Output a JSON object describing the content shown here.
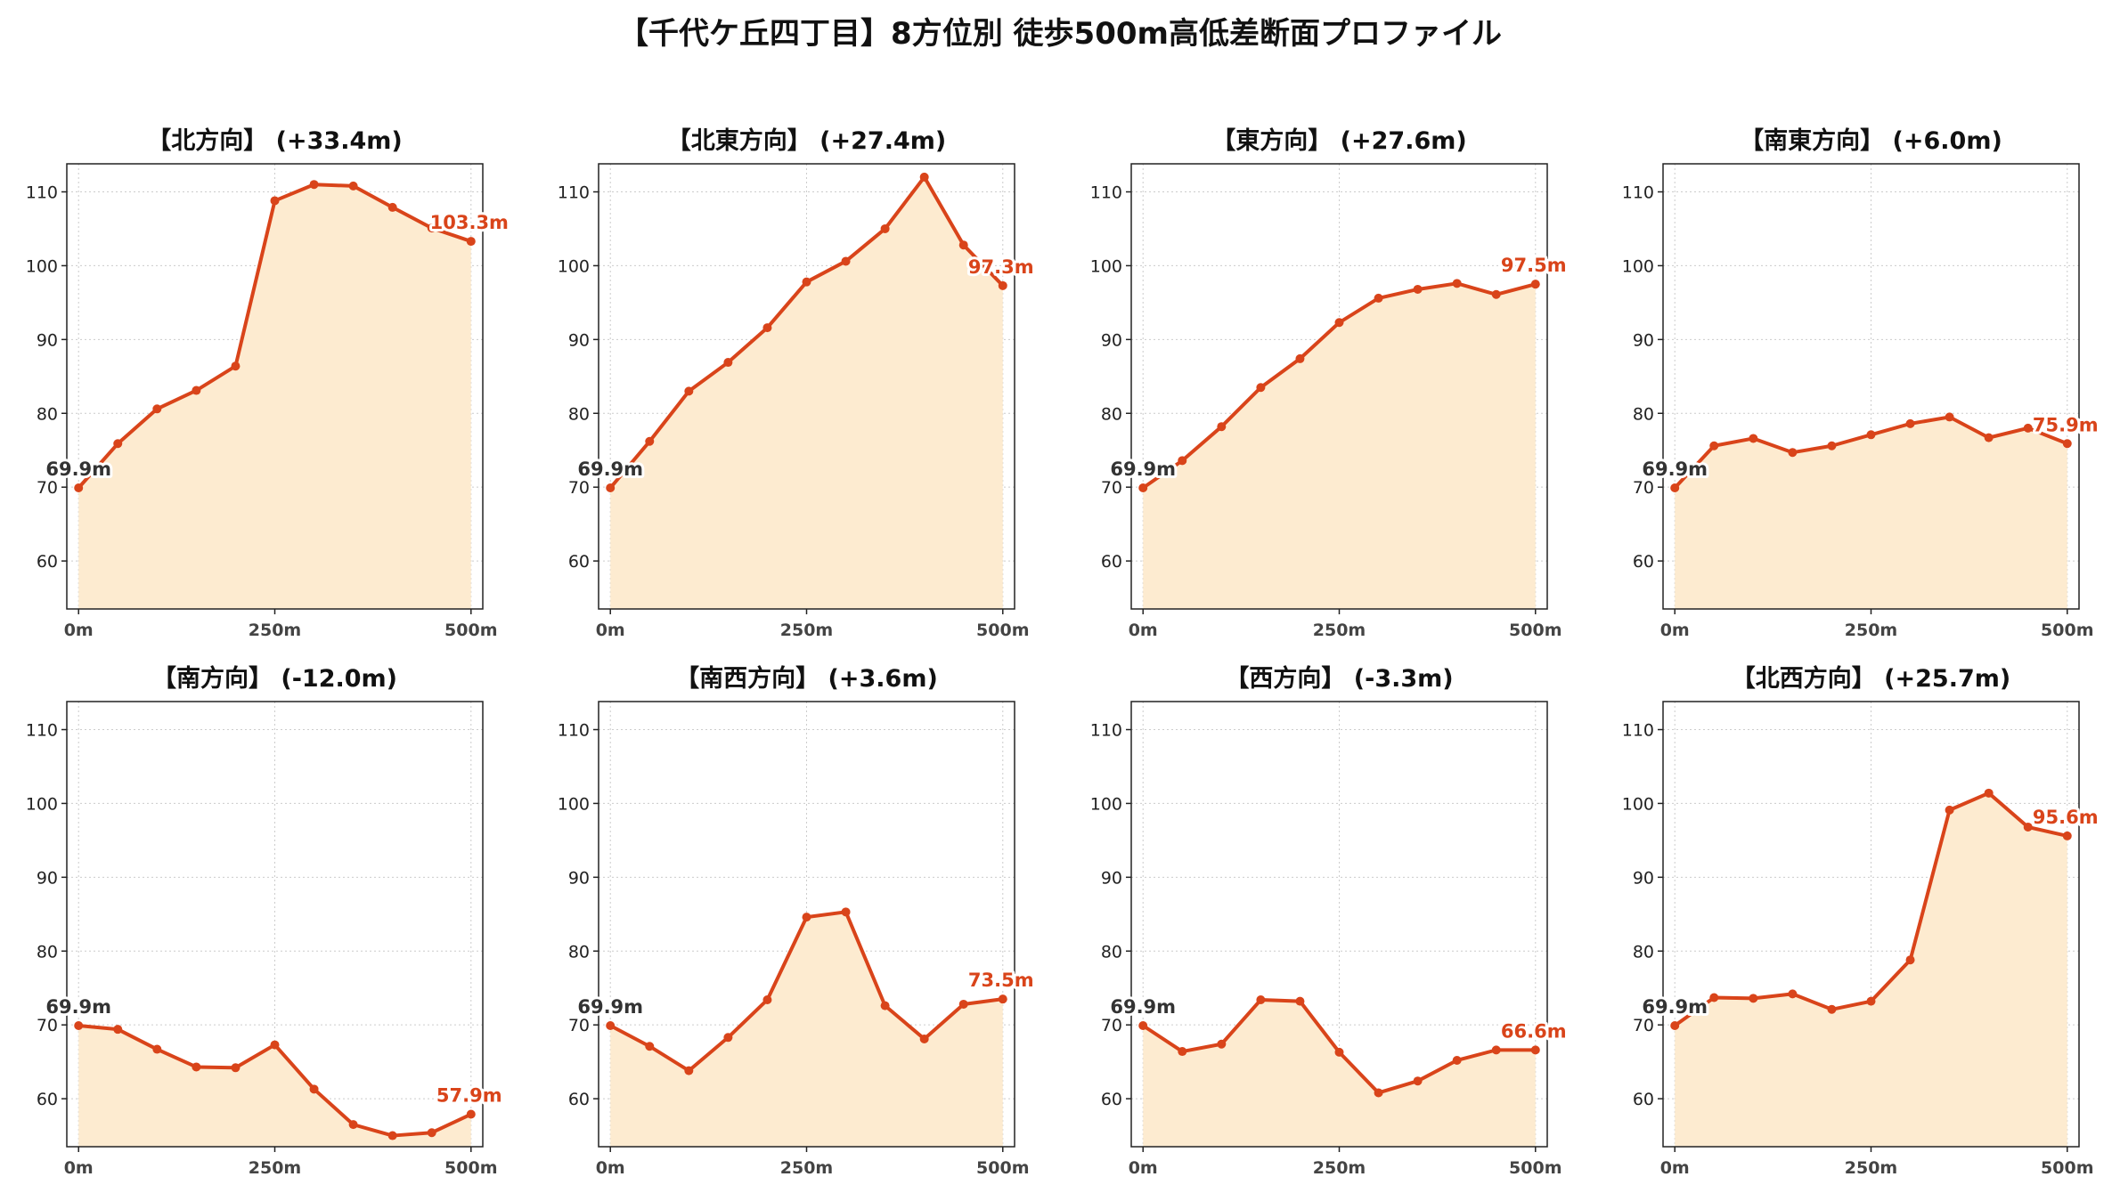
{
  "title": "【千代ケ丘四丁目】8方位別 徒歩500m高低差断面プロファイル",
  "colors": {
    "line": "#d9441a",
    "fill": "#fdebd0",
    "start_label": "#333333",
    "end_label": "#d9441a",
    "grid": "#cccccc"
  },
  "chart_data": [
    {
      "type": "area",
      "title": "【北方向】 (+33.4m)",
      "x": [
        0,
        50,
        100,
        150,
        200,
        250,
        300,
        350,
        400,
        450,
        500
      ],
      "y": [
        69.9,
        75.9,
        80.6,
        83.1,
        86.4,
        108.8,
        111.0,
        110.8,
        107.9,
        105.1,
        103.3
      ],
      "start_label": "69.9m",
      "end_label": "103.3m",
      "xticks": [
        "0m",
        "250m",
        "500m"
      ],
      "yticks": [
        60,
        70,
        80,
        90,
        100,
        110
      ],
      "xlim": [
        -15,
        515
      ],
      "ylim": [
        53.5,
        113.8
      ],
      "grid": true
    },
    {
      "type": "area",
      "title": "【北東方向】 (+27.4m)",
      "x": [
        0,
        50,
        100,
        150,
        200,
        250,
        300,
        350,
        400,
        450,
        500
      ],
      "y": [
        69.9,
        76.2,
        83.0,
        86.9,
        91.6,
        97.8,
        100.6,
        105.0,
        112.0,
        102.8,
        97.3
      ],
      "start_label": "69.9m",
      "end_label": "97.3m",
      "xticks": [
        "0m",
        "250m",
        "500m"
      ],
      "yticks": [
        60,
        70,
        80,
        90,
        100,
        110
      ],
      "xlim": [
        -15,
        515
      ],
      "ylim": [
        53.5,
        113.8
      ],
      "grid": true
    },
    {
      "type": "area",
      "title": "【東方向】 (+27.6m)",
      "x": [
        0,
        50,
        100,
        150,
        200,
        250,
        300,
        350,
        400,
        450,
        500
      ],
      "y": [
        69.9,
        73.6,
        78.2,
        83.5,
        87.4,
        92.3,
        95.6,
        96.8,
        97.6,
        96.1,
        97.5
      ],
      "start_label": "69.9m",
      "end_label": "97.5m",
      "xticks": [
        "0m",
        "250m",
        "500m"
      ],
      "yticks": [
        60,
        70,
        80,
        90,
        100,
        110
      ],
      "xlim": [
        -15,
        515
      ],
      "ylim": [
        53.5,
        113.8
      ],
      "grid": true
    },
    {
      "type": "area",
      "title": "【南東方向】 (+6.0m)",
      "x": [
        0,
        50,
        100,
        150,
        200,
        250,
        300,
        350,
        400,
        450,
        500
      ],
      "y": [
        69.9,
        75.6,
        76.6,
        74.7,
        75.6,
        77.1,
        78.6,
        79.5,
        76.7,
        78.0,
        75.9
      ],
      "start_label": "69.9m",
      "end_label": "75.9m",
      "xticks": [
        "0m",
        "250m",
        "500m"
      ],
      "yticks": [
        60,
        70,
        80,
        90,
        100,
        110
      ],
      "xlim": [
        -15,
        515
      ],
      "ylim": [
        53.5,
        113.8
      ],
      "grid": true
    },
    {
      "type": "area",
      "title": "【南方向】 (-12.0m)",
      "x": [
        0,
        50,
        100,
        150,
        200,
        250,
        300,
        350,
        400,
        450,
        500
      ],
      "y": [
        69.9,
        69.4,
        66.7,
        64.3,
        64.2,
        67.3,
        61.3,
        56.5,
        55.0,
        55.4,
        57.9
      ],
      "start_label": "69.9m",
      "end_label": "57.9m",
      "xticks": [
        "0m",
        "250m",
        "500m"
      ],
      "yticks": [
        60,
        70,
        80,
        90,
        100,
        110
      ],
      "xlim": [
        -15,
        515
      ],
      "ylim": [
        53.5,
        113.8
      ],
      "grid": true
    },
    {
      "type": "area",
      "title": "【南西方向】 (+3.6m)",
      "x": [
        0,
        50,
        100,
        150,
        200,
        250,
        300,
        350,
        400,
        450,
        500
      ],
      "y": [
        69.9,
        67.1,
        63.8,
        68.3,
        73.4,
        84.6,
        85.3,
        72.6,
        68.1,
        72.8,
        73.5
      ],
      "start_label": "69.9m",
      "end_label": "73.5m",
      "xticks": [
        "0m",
        "250m",
        "500m"
      ],
      "yticks": [
        60,
        70,
        80,
        90,
        100,
        110
      ],
      "xlim": [
        -15,
        515
      ],
      "ylim": [
        53.5,
        113.8
      ],
      "grid": true
    },
    {
      "type": "area",
      "title": "【西方向】 (-3.3m)",
      "x": [
        0,
        50,
        100,
        150,
        200,
        250,
        300,
        350,
        400,
        450,
        500
      ],
      "y": [
        69.9,
        66.4,
        67.4,
        73.4,
        73.2,
        66.3,
        60.8,
        62.4,
        65.2,
        66.6,
        66.6
      ],
      "start_label": "69.9m",
      "end_label": "66.6m",
      "xticks": [
        "0m",
        "250m",
        "500m"
      ],
      "yticks": [
        60,
        70,
        80,
        90,
        100,
        110
      ],
      "xlim": [
        -15,
        515
      ],
      "ylim": [
        53.5,
        113.8
      ],
      "grid": true
    },
    {
      "type": "area",
      "title": "【北西方向】 (+25.7m)",
      "x": [
        0,
        50,
        100,
        150,
        200,
        250,
        300,
        350,
        400,
        450,
        500
      ],
      "y": [
        69.9,
        73.7,
        73.6,
        74.2,
        72.1,
        73.2,
        78.8,
        99.1,
        101.4,
        96.8,
        95.6
      ],
      "start_label": "69.9m",
      "end_label": "95.6m",
      "xticks": [
        "0m",
        "250m",
        "500m"
      ],
      "yticks": [
        60,
        70,
        80,
        90,
        100,
        110
      ],
      "xlim": [
        -15,
        515
      ],
      "ylim": [
        53.5,
        113.8
      ],
      "grid": true
    }
  ]
}
